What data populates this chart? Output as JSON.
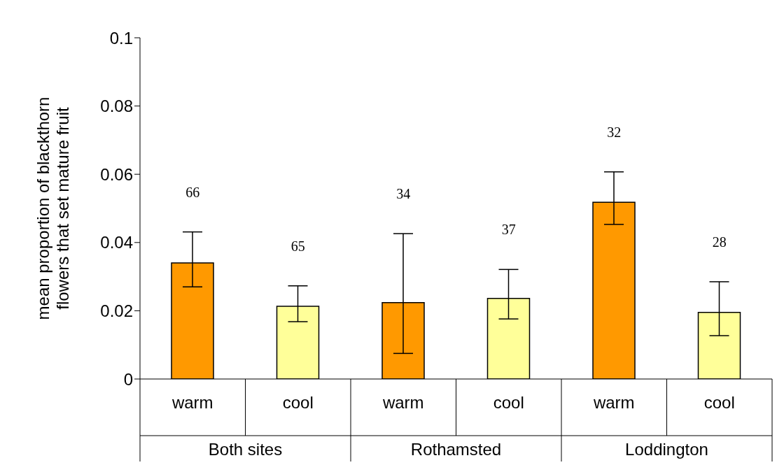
{
  "chart_data": {
    "type": "bar",
    "ylabel": "mean proportion of blackthorn flowers that set mature fruit",
    "categories": [
      "warm",
      "cool",
      "warm",
      "cool",
      "warm",
      "cool"
    ],
    "values": [
      0.034,
      0.0213,
      0.0224,
      0.0236,
      0.0518,
      0.0195
    ],
    "colors": [
      "#ff9900",
      "#ffff99",
      "#ff9900",
      "#ffff99",
      "#ff9900",
      "#ffff99"
    ],
    "errors": [
      [
        0.027,
        0.0431
      ],
      [
        0.0168,
        0.0273
      ],
      [
        0.0075,
        0.0426
      ],
      [
        0.0176,
        0.0321
      ],
      [
        0.0453,
        0.0607
      ],
      [
        0.0127,
        0.0285
      ]
    ],
    "annotations": [
      "Both sites",
      "Rothamsted",
      "Loddington",
      "66",
      "65",
      "34",
      "37",
      "32",
      "28"
    ],
    "ylim": [
      0,
      0.1
    ],
    "yticks": [
      0,
      0.02,
      0.04,
      0.06,
      0.08,
      0.1
    ],
    "grid": false,
    "legend": false
  }
}
